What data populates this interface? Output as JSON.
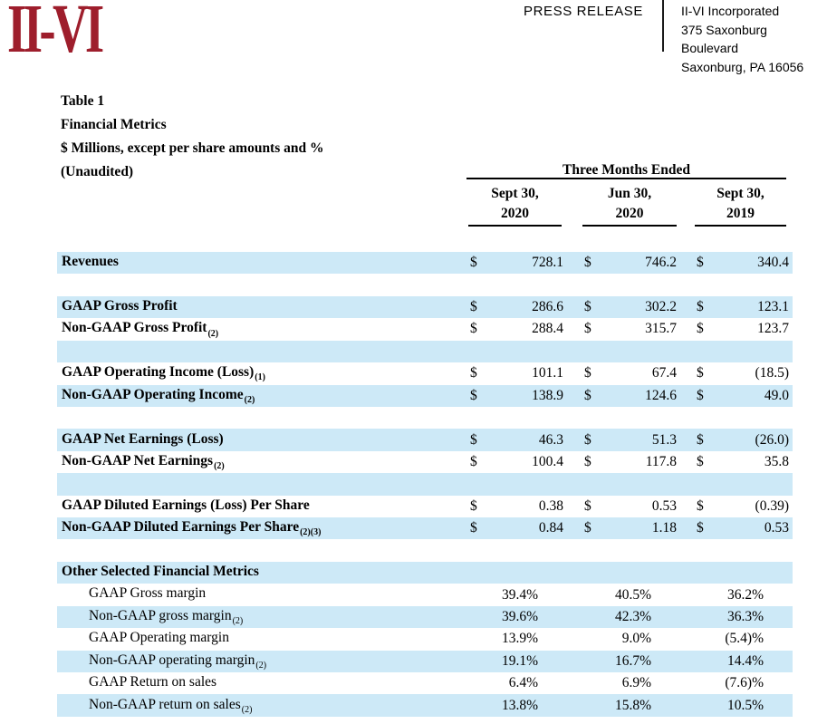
{
  "header": {
    "logo_text": "II-VI",
    "press_release_label": "PRESS RELEASE",
    "company": {
      "name": "II-VI Incorporated",
      "address_line1": "375 Saxonburg Boulevard",
      "address_line2": "Saxonburg, PA 16056"
    }
  },
  "title_block": {
    "table_label": "Table 1",
    "title": "Financial Metrics",
    "units": "$ Millions, except per share amounts and %",
    "note": "(Unaudited)"
  },
  "table": {
    "period_header": "Three Months Ended",
    "currency_symbol": "$",
    "columns": [
      {
        "line1": "Sept 30,",
        "line2": "2020"
      },
      {
        "line1": "Jun 30,",
        "line2": "2020"
      },
      {
        "line1": "Sept 30,",
        "line2": "2019"
      }
    ],
    "rows": [
      {
        "label": "Revenues",
        "sub": "",
        "type": "money",
        "bold": true,
        "indent": false,
        "shaded": true,
        "values": [
          "728.1",
          "746.2",
          "340.4"
        ]
      },
      {
        "label": "",
        "sub": "",
        "type": "blank",
        "bold": false,
        "indent": false,
        "shaded": false,
        "values": []
      },
      {
        "label": "GAAP Gross Profit",
        "sub": "",
        "type": "money",
        "bold": true,
        "indent": false,
        "shaded": true,
        "values": [
          "286.6",
          "302.2",
          "123.1"
        ]
      },
      {
        "label": "Non-GAAP Gross Profit",
        "sub": "(2)",
        "type": "money",
        "bold": true,
        "indent": false,
        "shaded": false,
        "values": [
          "288.4",
          "315.7",
          "123.7"
        ]
      },
      {
        "label": "",
        "sub": "",
        "type": "blank",
        "bold": false,
        "indent": false,
        "shaded": true,
        "values": []
      },
      {
        "label": "GAAP Operating Income (Loss)",
        "sub": "(1)",
        "type": "money",
        "bold": true,
        "indent": false,
        "shaded": false,
        "values": [
          "101.1",
          "67.4",
          "(18.5)"
        ]
      },
      {
        "label": "Non-GAAP Operating Income",
        "sub": "(2)",
        "type": "money",
        "bold": true,
        "indent": false,
        "shaded": true,
        "values": [
          "138.9",
          "124.6",
          "49.0"
        ]
      },
      {
        "label": "",
        "sub": "",
        "type": "blank",
        "bold": false,
        "indent": false,
        "shaded": false,
        "values": []
      },
      {
        "label": "GAAP Net Earnings (Loss)",
        "sub": "",
        "type": "money",
        "bold": true,
        "indent": false,
        "shaded": true,
        "values": [
          "46.3",
          "51.3",
          "(26.0)"
        ]
      },
      {
        "label": "Non-GAAP Net Earnings",
        "sub": "(2)",
        "type": "money",
        "bold": true,
        "indent": false,
        "shaded": false,
        "values": [
          "100.4",
          "117.8",
          "35.8"
        ]
      },
      {
        "label": "",
        "sub": "",
        "type": "blank",
        "bold": false,
        "indent": false,
        "shaded": true,
        "values": []
      },
      {
        "label": "GAAP Diluted Earnings (Loss) Per Share",
        "sub": "",
        "type": "money",
        "bold": true,
        "indent": false,
        "shaded": false,
        "values": [
          "0.38",
          "0.53",
          "(0.39)"
        ]
      },
      {
        "label": "Non-GAAP Diluted Earnings Per Share",
        "sub": "(2)(3)",
        "type": "money",
        "bold": true,
        "indent": false,
        "shaded": true,
        "values": [
          "0.84",
          "1.18",
          "0.53"
        ]
      },
      {
        "label": "",
        "sub": "",
        "type": "blank",
        "bold": false,
        "indent": false,
        "shaded": false,
        "values": []
      },
      {
        "label": "Other Selected Financial Metrics",
        "sub": "",
        "type": "section",
        "bold": true,
        "indent": false,
        "shaded": true,
        "values": []
      },
      {
        "label": "GAAP Gross margin",
        "sub": "",
        "type": "percent",
        "bold": false,
        "indent": true,
        "shaded": false,
        "values": [
          "39.4%",
          "40.5%",
          "36.2%"
        ]
      },
      {
        "label": "Non-GAAP gross margin",
        "sub": "(2)",
        "type": "percent",
        "bold": false,
        "indent": true,
        "shaded": true,
        "values": [
          "39.6%",
          "42.3%",
          "36.3%"
        ]
      },
      {
        "label": "GAAP Operating margin",
        "sub": "",
        "type": "percent",
        "bold": false,
        "indent": true,
        "shaded": false,
        "values": [
          "13.9%",
          "9.0%",
          "(5.4)%"
        ]
      },
      {
        "label": "Non-GAAP operating margin",
        "sub": "(2)",
        "type": "percent",
        "bold": false,
        "indent": true,
        "shaded": true,
        "values": [
          "19.1%",
          "16.7%",
          "14.4%"
        ]
      },
      {
        "label": "GAAP Return on sales",
        "sub": "",
        "type": "percent",
        "bold": false,
        "indent": true,
        "shaded": false,
        "values": [
          "6.4%",
          "6.9%",
          "(7.6)%"
        ]
      },
      {
        "label": "Non-GAAP return on sales",
        "sub": "(2)",
        "type": "percent",
        "bold": false,
        "indent": true,
        "shaded": true,
        "values": [
          "13.8%",
          "15.8%",
          "10.5%"
        ]
      }
    ]
  },
  "colors": {
    "accent_red": "#9e1e2c",
    "stripe_blue": "#cde9f7"
  }
}
